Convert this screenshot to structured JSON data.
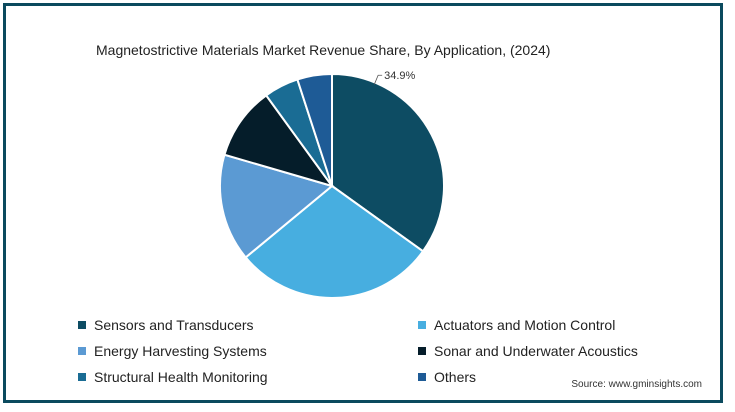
{
  "chart_data": {
    "type": "pie",
    "title": "Magnetostrictive Materials Market Revenue Share, By Application,  (2024)",
    "unit": "%",
    "slices": [
      {
        "label": "Sensors and Transducers",
        "value": 34.9,
        "color": "#0d4c63",
        "data_label": "34.9%"
      },
      {
        "label": "Actuators and Motion Control",
        "value": 29.1,
        "color": "#47aee0",
        "data_label": ""
      },
      {
        "label": "Energy Harvesting Systems",
        "value": 15.5,
        "color": "#5b9ad3",
        "data_label": ""
      },
      {
        "label": "Sonar and Underwater Acoustics",
        "value": 10.5,
        "color": "#051d2a",
        "data_label": ""
      },
      {
        "label": "Structural Health Monitoring",
        "value": 5.0,
        "color": "#1a6c94",
        "data_label": ""
      },
      {
        "label": "Others",
        "value": 5.0,
        "color": "#1e5b96",
        "data_label": ""
      }
    ],
    "start_angle_deg": 0,
    "direction": "clockwise",
    "legend_position": "bottom"
  },
  "source": "Source: www.gminsights.com",
  "colors": {
    "border": "#0b4a5e",
    "slice_stroke": "#ffffff"
  }
}
